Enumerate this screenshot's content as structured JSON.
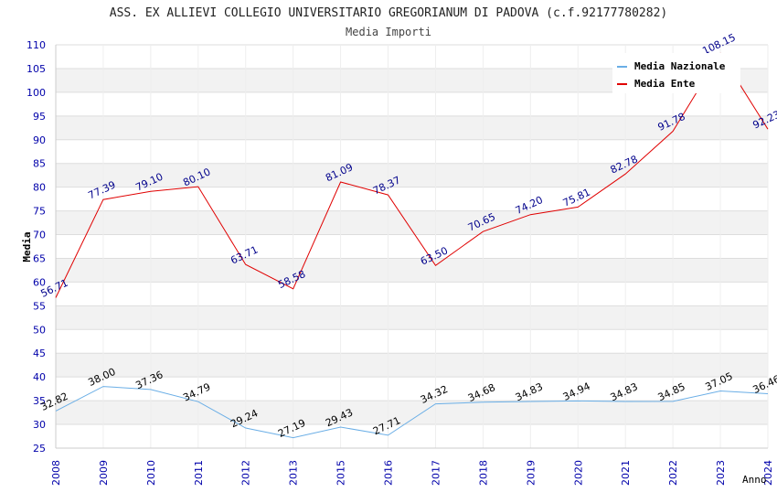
{
  "chart_data": {
    "type": "line",
    "title": "ASS. EX ALLIEVI COLLEGIO UNIVERSITARIO GREGORIANUM DI PADOVA (c.f.92177780282)",
    "subtitle": "Media Importi",
    "xlabel": "Anno",
    "ylabel": "Media",
    "ylim": [
      25,
      110
    ],
    "ytick_step": 5,
    "categories": [
      "2008",
      "2009",
      "2010",
      "2011",
      "2012",
      "2013",
      "2015",
      "2016",
      "2017",
      "2018",
      "2019",
      "2020",
      "2021",
      "2022",
      "2023",
      "2024"
    ],
    "series": [
      {
        "name": "Media Nazionale",
        "color": "#6aaee6",
        "label_color": "#000000",
        "values": [
          32.82,
          38.0,
          37.36,
          34.79,
          29.24,
          27.19,
          29.43,
          27.71,
          34.32,
          34.68,
          34.83,
          34.94,
          34.83,
          34.85,
          37.05,
          36.46
        ],
        "labels": [
          "32.82",
          "38.00",
          "37.36",
          "34.79",
          "29.24",
          "27.19",
          "29.43",
          "27.71",
          "34.32",
          "34.68",
          "34.83",
          "34.94",
          "34.83",
          "34.85",
          "37.05",
          "36.46"
        ]
      },
      {
        "name": "Media Ente",
        "color": "#e00000",
        "label_color": "#00008b",
        "values": [
          56.71,
          77.39,
          79.1,
          80.1,
          63.71,
          58.58,
          81.09,
          78.37,
          63.5,
          70.65,
          74.2,
          75.81,
          82.78,
          91.78,
          108.15,
          92.23
        ],
        "labels": [
          "56.71",
          "77.39",
          "79.10",
          "80.10",
          "63.71",
          "58.58",
          "81.09",
          "78.37",
          "63.50",
          "70.65",
          "74.20",
          "75.81",
          "82.78",
          "91.78",
          "108.15",
          "92.23"
        ]
      }
    ],
    "legend_position": "top-right",
    "grid": true,
    "colors": {
      "axis_text": "#0000aa",
      "band": "#f2f2f2",
      "gridline": "#dddddd"
    }
  }
}
